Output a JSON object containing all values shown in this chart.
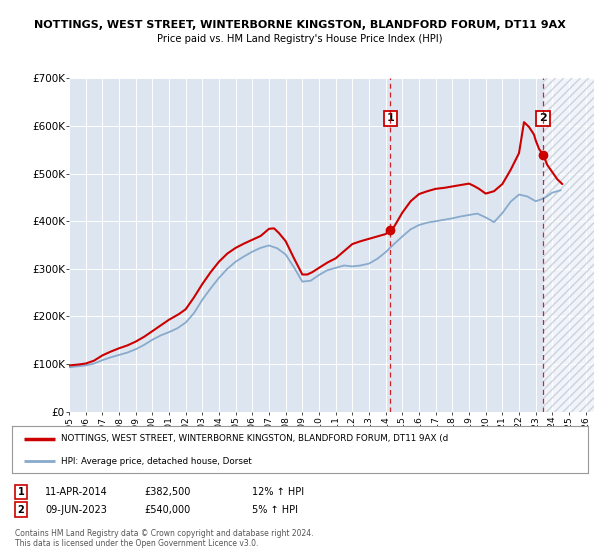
{
  "title": "NOTTINGS, WEST STREET, WINTERBORNE KINGSTON, BLANDFORD FORUM, DT11 9AX",
  "subtitle": "Price paid vs. HM Land Registry's House Price Index (HPI)",
  "bg_color": "#dde6f0",
  "red_line_color": "#cc0000",
  "blue_line_color": "#88aacc",
  "marker1_date_x": 2014.27,
  "marker1_y": 382500,
  "marker1_label": "1",
  "marker1_date_str": "11-APR-2014",
  "marker1_price": "£382,500",
  "marker1_hpi": "12% ↑ HPI",
  "marker2_date_x": 2023.44,
  "marker2_y": 540000,
  "marker2_label": "2",
  "marker2_date_str": "09-JUN-2023",
  "marker2_price": "£540,000",
  "marker2_hpi": "5% ↑ HPI",
  "vline1_x": 2014.27,
  "vline2_x": 2023.44,
  "ylim": [
    0,
    700000
  ],
  "xlim": [
    1995,
    2026.5
  ],
  "yticks": [
    0,
    100000,
    200000,
    300000,
    400000,
    500000,
    600000,
    700000
  ],
  "ytick_labels": [
    "£0",
    "£100K",
    "£200K",
    "£300K",
    "£400K",
    "£500K",
    "£600K",
    "£700K"
  ],
  "xticks": [
    1995,
    1996,
    1997,
    1998,
    1999,
    2000,
    2001,
    2002,
    2003,
    2004,
    2005,
    2006,
    2007,
    2008,
    2009,
    2010,
    2011,
    2012,
    2013,
    2014,
    2015,
    2016,
    2017,
    2018,
    2019,
    2020,
    2021,
    2022,
    2023,
    2024,
    2025,
    2026
  ],
  "legend_red_label": "NOTTINGS, WEST STREET, WINTERBORNE KINGSTON, BLANDFORD FORUM, DT11 9AX (d",
  "legend_blue_label": "HPI: Average price, detached house, Dorset",
  "footer1": "Contains HM Land Registry data © Crown copyright and database right 2024.",
  "footer2": "This data is licensed under the Open Government Licence v3.0.",
  "red_x": [
    1995.0,
    1995.3,
    1995.6,
    1996.0,
    1996.5,
    1997.0,
    1997.5,
    1998.0,
    1998.5,
    1999.0,
    1999.5,
    2000.0,
    2000.5,
    2001.0,
    2001.3,
    2001.6,
    2002.0,
    2002.5,
    2003.0,
    2003.5,
    2004.0,
    2004.5,
    2005.0,
    2005.5,
    2006.0,
    2006.5,
    2007.0,
    2007.3,
    2007.6,
    2008.0,
    2008.5,
    2009.0,
    2009.3,
    2009.6,
    2010.0,
    2010.5,
    2011.0,
    2011.5,
    2012.0,
    2012.5,
    2013.0,
    2013.5,
    2014.0,
    2014.27,
    2014.5,
    2015.0,
    2015.5,
    2016.0,
    2016.5,
    2017.0,
    2017.5,
    2018.0,
    2018.5,
    2019.0,
    2019.3,
    2019.6,
    2020.0,
    2020.5,
    2021.0,
    2021.5,
    2022.0,
    2022.3,
    2022.6,
    2022.9,
    2023.0,
    2023.2,
    2023.44,
    2023.7,
    2024.0,
    2024.3,
    2024.6
  ],
  "red_y": [
    97000,
    98000,
    99000,
    101000,
    107000,
    118000,
    126000,
    133000,
    139000,
    147000,
    157000,
    169000,
    181000,
    193000,
    199000,
    205000,
    215000,
    240000,
    268000,
    293000,
    315000,
    332000,
    344000,
    353000,
    361000,
    369000,
    384000,
    385000,
    375000,
    358000,
    322000,
    288000,
    288000,
    293000,
    302000,
    313000,
    322000,
    337000,
    352000,
    358000,
    363000,
    368000,
    373000,
    382500,
    388000,
    418000,
    442000,
    457000,
    463000,
    468000,
    470000,
    473000,
    476000,
    479000,
    474000,
    468000,
    458000,
    463000,
    478000,
    508000,
    543000,
    608000,
    598000,
    582000,
    570000,
    552000,
    540000,
    518000,
    503000,
    488000,
    478000
  ],
  "blue_x": [
    1995.0,
    1995.5,
    1996.0,
    1996.5,
    1997.0,
    1997.5,
    1998.0,
    1998.5,
    1999.0,
    1999.5,
    2000.0,
    2000.5,
    2001.0,
    2001.5,
    2002.0,
    2002.5,
    2003.0,
    2003.5,
    2004.0,
    2004.5,
    2005.0,
    2005.5,
    2006.0,
    2006.5,
    2007.0,
    2007.5,
    2008.0,
    2008.5,
    2009.0,
    2009.5,
    2010.0,
    2010.5,
    2011.0,
    2011.5,
    2012.0,
    2012.5,
    2013.0,
    2013.5,
    2014.0,
    2014.5,
    2015.0,
    2015.5,
    2016.0,
    2016.5,
    2017.0,
    2017.5,
    2018.0,
    2018.5,
    2019.0,
    2019.5,
    2020.0,
    2020.5,
    2021.0,
    2021.5,
    2022.0,
    2022.5,
    2023.0,
    2023.5,
    2024.0,
    2024.5
  ],
  "blue_y": [
    93000,
    95000,
    97000,
    101000,
    108000,
    114000,
    119000,
    124000,
    131000,
    140000,
    151000,
    160000,
    167000,
    175000,
    187000,
    207000,
    235000,
    259000,
    281000,
    300000,
    315000,
    326000,
    336000,
    344000,
    349000,
    343000,
    330000,
    303000,
    273000,
    275000,
    287000,
    297000,
    302000,
    307000,
    305000,
    307000,
    311000,
    321000,
    335000,
    352000,
    368000,
    383000,
    392000,
    397000,
    400000,
    403000,
    406000,
    410000,
    413000,
    416000,
    408000,
    398000,
    417000,
    441000,
    456000,
    452000,
    442000,
    448000,
    460000,
    465000
  ]
}
